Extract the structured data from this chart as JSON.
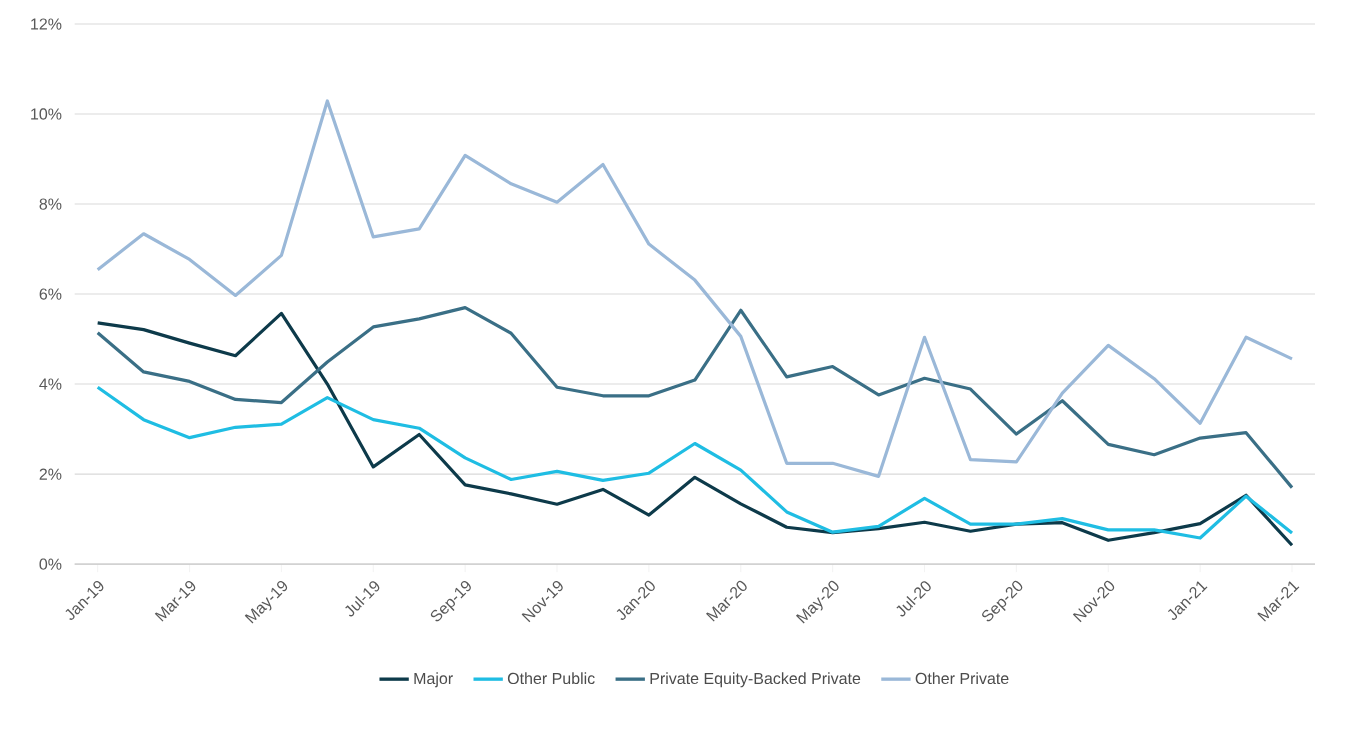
{
  "chart_data": {
    "type": "line",
    "categories": [
      "Jan-19",
      null,
      "Mar-19",
      null,
      "May-19",
      null,
      "Jul-19",
      null,
      "Sep-19",
      null,
      "Nov-19",
      null,
      "Jan-20",
      null,
      "Mar-20",
      null,
      "May-20",
      null,
      "Jul-20",
      null,
      "Sep-20",
      null,
      "Nov-20",
      null,
      "Jan-21",
      null,
      "Mar-21"
    ],
    "series": [
      {
        "name": "Major",
        "color": "#0d3a4a",
        "values": [
          5.36,
          5.21,
          4.91,
          4.63,
          5.57,
          4.0,
          2.16,
          2.88,
          1.76,
          1.56,
          1.33,
          1.66,
          1.09,
          1.93,
          1.34,
          0.82,
          0.7,
          0.79,
          0.93,
          0.73,
          0.89,
          0.92,
          0.53,
          0.7,
          0.9,
          1.53,
          0.42
        ]
      },
      {
        "name": "Other Public",
        "color": "#1fbde3",
        "values": [
          3.93,
          3.21,
          2.81,
          3.04,
          3.11,
          3.7,
          3.21,
          3.02,
          2.36,
          1.88,
          2.06,
          1.86,
          2.02,
          2.68,
          2.09,
          1.16,
          0.71,
          0.84,
          1.46,
          0.89,
          0.89,
          1.01,
          0.76,
          0.76,
          0.58,
          1.51,
          0.69
        ]
      },
      {
        "name": "Private Equity-Backed Private",
        "color": "#3a6f86",
        "values": [
          5.14,
          4.27,
          4.06,
          3.66,
          3.59,
          4.49,
          5.27,
          5.45,
          5.7,
          5.13,
          3.93,
          3.74,
          3.74,
          4.09,
          5.64,
          4.16,
          4.39,
          3.76,
          4.13,
          3.89,
          2.89,
          3.63,
          2.66,
          2.43,
          2.8,
          2.92,
          1.7
        ]
      },
      {
        "name": "Other Private",
        "color": "#9ab8d8",
        "values": [
          6.54,
          7.34,
          6.77,
          5.97,
          6.86,
          10.29,
          7.27,
          7.45,
          9.08,
          8.45,
          8.04,
          8.88,
          7.11,
          6.31,
          5.06,
          2.24,
          2.24,
          1.95,
          5.04,
          2.32,
          2.27,
          3.8,
          4.86,
          4.12,
          3.13,
          5.04,
          4.56
        ]
      }
    ],
    "ylim": [
      0,
      12
    ],
    "yticks": [
      {
        "value": 0,
        "label": "0%"
      },
      {
        "value": 2,
        "label": "2%"
      },
      {
        "value": 4,
        "label": "4%"
      },
      {
        "value": 6,
        "label": "6%"
      },
      {
        "value": 8,
        "label": "8%"
      },
      {
        "value": 10,
        "label": "10%"
      },
      {
        "value": 12,
        "label": "12%"
      }
    ],
    "grid": "y",
    "legend": "bottom",
    "marker": "none",
    "line_style": "solid"
  }
}
